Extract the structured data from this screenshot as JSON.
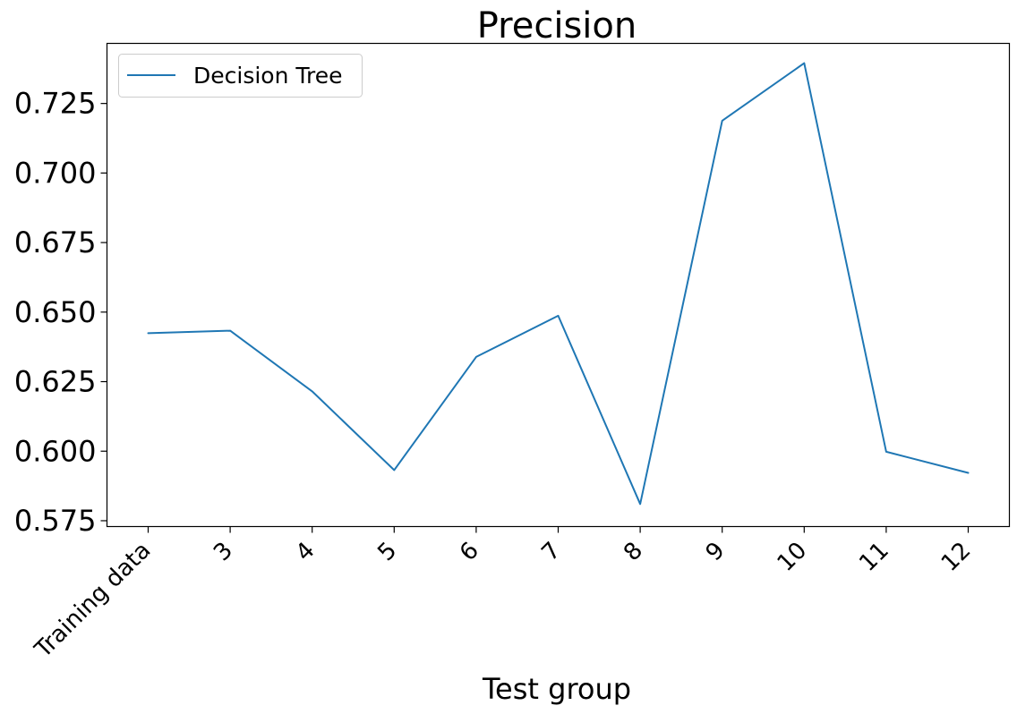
{
  "chart_data": {
    "type": "line",
    "title": "Precision",
    "xlabel": "Test group",
    "ylabel": "",
    "categories": [
      "Training data",
      "3",
      "4",
      "5",
      "6",
      "7",
      "8",
      "9",
      "10",
      "11",
      "12"
    ],
    "series": [
      {
        "name": "Decision Tree",
        "color": "#1f77b4",
        "values": [
          0.6424,
          0.6433,
          0.6215,
          0.5932,
          0.6339,
          0.6487,
          0.581,
          0.7188,
          0.7395,
          0.5998,
          0.5922
        ]
      }
    ],
    "yticks": [
      0.575,
      0.6,
      0.625,
      0.65,
      0.675,
      0.7,
      0.725
    ],
    "ytick_labels": [
      "0.575",
      "0.600",
      "0.625",
      "0.650",
      "0.675",
      "0.700",
      "0.725"
    ],
    "ylim": [
      0.5729,
      0.7466
    ],
    "grid": false,
    "legend_position": "upper-left"
  }
}
